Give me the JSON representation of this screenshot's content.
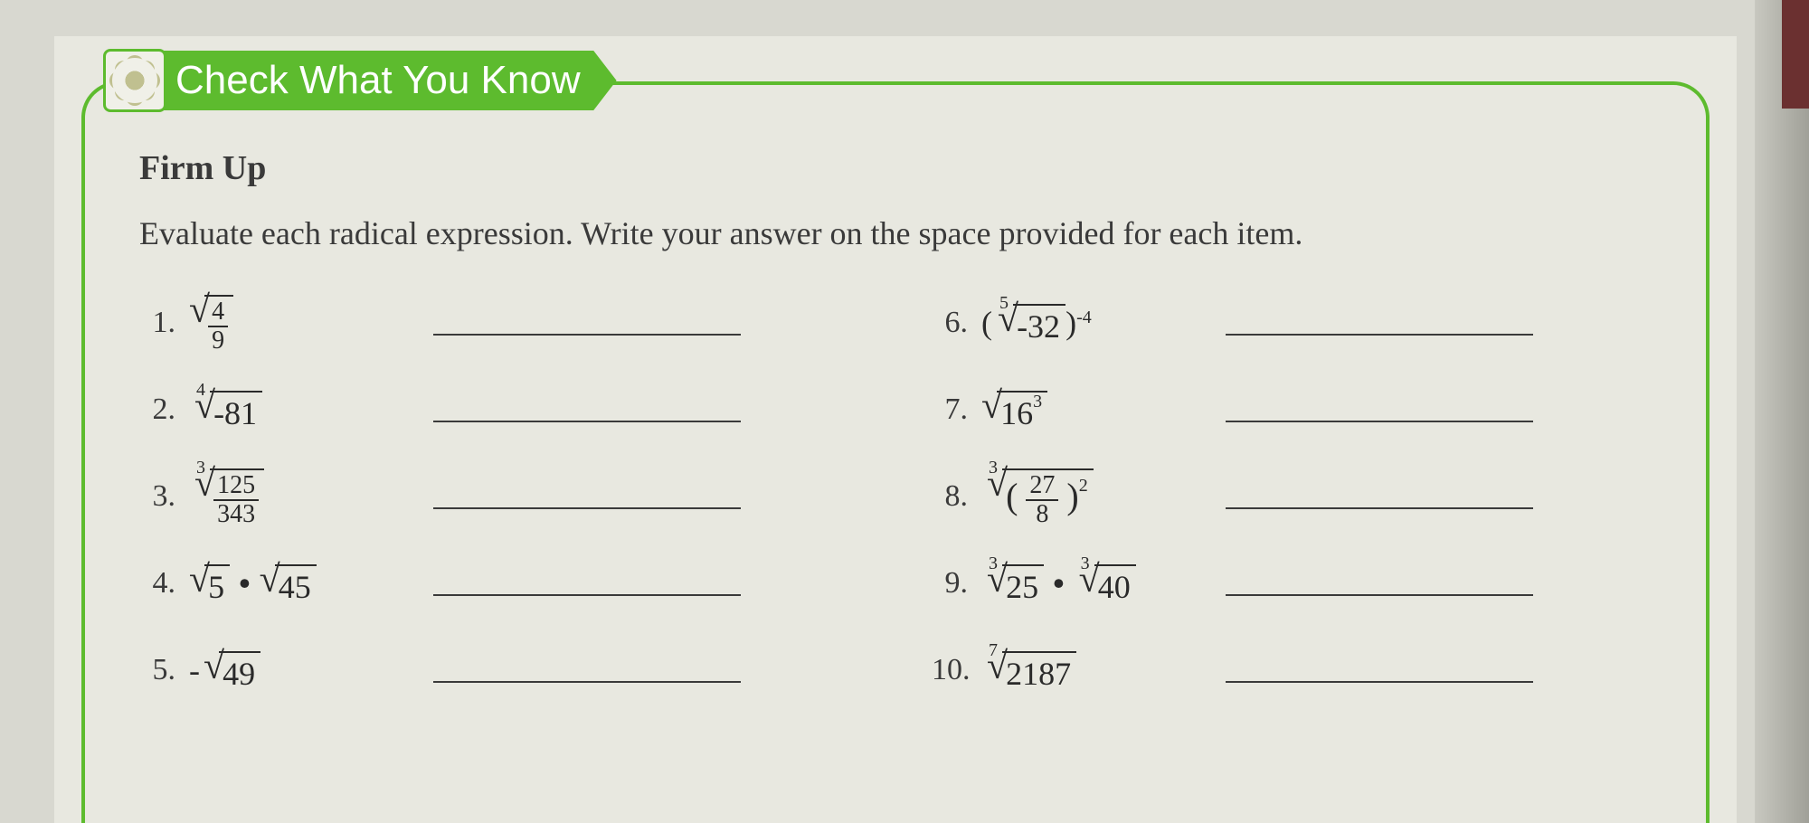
{
  "header": {
    "title": "Check What You Know",
    "section": "Firm Up",
    "instructions": "Evaluate each radical expression. Write your answer on the space provided for each item."
  },
  "problems": {
    "left": [
      {
        "num": "1.",
        "type": "sqrt_frac",
        "frac_num": "4",
        "frac_den": "9"
      },
      {
        "num": "2.",
        "type": "nthroot",
        "index": "4",
        "radicand": "-81"
      },
      {
        "num": "3.",
        "type": "nthroot_frac",
        "index": "3",
        "frac_num": "125",
        "frac_den": "343"
      },
      {
        "num": "4.",
        "type": "sqrt_product",
        "rad1": "5",
        "rad2": "45"
      },
      {
        "num": "5.",
        "type": "neg_sqrt",
        "radicand": "49"
      }
    ],
    "right": [
      {
        "num": "6.",
        "type": "nthroot_power",
        "index": "5",
        "radicand": "-32",
        "exponent": "-4"
      },
      {
        "num": "7.",
        "type": "sqrt_power",
        "base": "16",
        "exponent": "3"
      },
      {
        "num": "8.",
        "type": "nthroot_frac_power",
        "index": "3",
        "frac_num": "27",
        "frac_den": "8",
        "exponent": "2"
      },
      {
        "num": "9.",
        "type": "nthroot_product",
        "index": "3",
        "rad1": "25",
        "rad2": "40"
      },
      {
        "num": "10.",
        "type": "nthroot",
        "index": "7",
        "radicand": "2187"
      }
    ]
  },
  "colors": {
    "accent": "#5dbb2e",
    "text": "#3a3a3a",
    "page_bg": "#e8e8e0",
    "body_bg": "#d8d8d0"
  }
}
